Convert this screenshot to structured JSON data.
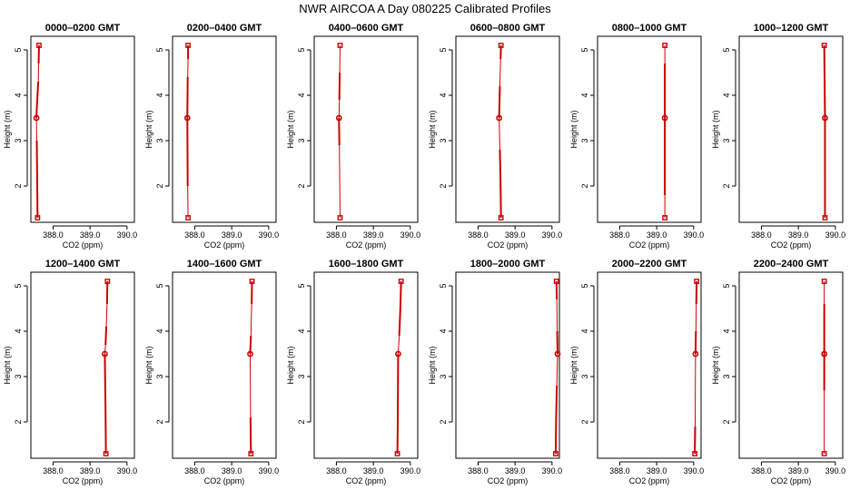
{
  "title": "NWR AIRCOA A  Day 080225  Calibrated Profiles",
  "colors": {
    "profile": "#cc0000",
    "axes": "#000000",
    "background": "#ffffff"
  },
  "chart_data": [
    {
      "type": "line",
      "title": "0000–0200 GMT",
      "xlabel": "CO2 (ppm)",
      "ylabel": "Height (m)",
      "xlim": [
        387.4,
        390.2
      ],
      "ylim": [
        1.2,
        5.3
      ],
      "xticks": [
        388.0,
        389.0,
        390.0
      ],
      "xtick_labels": [
        "388.0",
        "389.0",
        "390.0"
      ],
      "yticks": [
        2,
        3,
        4,
        5
      ],
      "ytick_labels": [
        "2",
        "3",
        "4",
        "5"
      ],
      "grid": false,
      "series": [
        {
          "x": [
            387.62,
            387.55,
            387.58
          ],
          "y": [
            5.1,
            3.5,
            1.3
          ],
          "x_lines": [
            [
              387.62,
              387.61,
              387.6,
              387.58,
              387.56,
              387.55
            ],
            [
              387.55,
              387.56,
              387.57,
              387.58
            ]
          ],
          "y_lines": [
            [
              5.1,
              4.7,
              4.3,
              4.0,
              3.7,
              3.5
            ],
            [
              3.5,
              3.0,
              2.2,
              1.3
            ]
          ],
          "line_width": [
            2,
            1,
            2,
            2
          ]
        }
      ]
    },
    {
      "type": "line",
      "title": "0200–0400 GMT",
      "xlabel": "CO2 (ppm)",
      "ylabel": "Height (m)",
      "xlim": [
        387.4,
        390.2
      ],
      "ylim": [
        1.2,
        5.3
      ],
      "xticks": [
        388.0,
        389.0,
        390.0
      ],
      "xtick_labels": [
        "388.0",
        "389.0",
        "390.0"
      ],
      "yticks": [
        2,
        3,
        4,
        5
      ],
      "ytick_labels": [
        "2",
        "3",
        "4",
        "5"
      ],
      "grid": false,
      "series": [
        {
          "x": [
            387.82,
            387.8,
            387.82
          ],
          "y": [
            5.1,
            3.5,
            1.3
          ],
          "x_lines": [
            [
              387.82,
              387.82,
              387.81,
              387.8
            ],
            [
              387.8,
              387.81,
              387.82
            ]
          ],
          "y_lines": [
            [
              5.1,
              4.8,
              4.4,
              3.5
            ],
            [
              3.5,
              2.0,
              1.3
            ]
          ],
          "line_width": [
            2,
            1,
            2
          ]
        }
      ]
    },
    {
      "type": "line",
      "title": "0400–0600 GMT",
      "xlabel": "CO2 (ppm)",
      "ylabel": "Height (m)",
      "xlim": [
        387.4,
        390.2
      ],
      "ylim": [
        1.2,
        5.3
      ],
      "xticks": [
        388.0,
        389.0,
        390.0
      ],
      "xtick_labels": [
        "388.0",
        "389.0",
        "390.0"
      ],
      "yticks": [
        2,
        3,
        4,
        5
      ],
      "ytick_labels": [
        "2",
        "3",
        "4",
        "5"
      ],
      "grid": false,
      "series": [
        {
          "x": [
            388.1,
            388.07,
            388.1
          ],
          "y": [
            5.1,
            3.5,
            1.3
          ],
          "x_lines": [
            [
              388.1,
              388.09,
              388.08,
              388.07
            ],
            [
              388.07,
              388.08,
              388.09,
              388.1
            ]
          ],
          "y_lines": [
            [
              5.1,
              4.5,
              3.9,
              3.5
            ],
            [
              3.5,
              2.9,
              2.1,
              1.3
            ]
          ],
          "line_width": [
            1,
            2,
            1,
            2,
            1
          ]
        }
      ]
    },
    {
      "type": "line",
      "title": "0600–0800 GMT",
      "xlabel": "CO2 (ppm)",
      "ylabel": "Height (m)",
      "xlim": [
        387.4,
        390.2
      ],
      "ylim": [
        1.2,
        5.3
      ],
      "xticks": [
        388.0,
        389.0,
        390.0
      ],
      "xtick_labels": [
        "388.0",
        "389.0",
        "390.0"
      ],
      "yticks": [
        2,
        3,
        4,
        5
      ],
      "ytick_labels": [
        "2",
        "3",
        "4",
        "5"
      ],
      "grid": false,
      "series": [
        {
          "x": [
            388.62,
            388.57,
            388.62
          ],
          "y": [
            5.1,
            3.5,
            1.3
          ],
          "x_lines": [
            [
              388.62,
              388.61,
              388.59,
              388.57
            ],
            [
              388.57,
              388.59,
              388.61,
              388.62
            ]
          ],
          "y_lines": [
            [
              5.1,
              4.8,
              4.2,
              3.5
            ],
            [
              3.5,
              2.8,
              2.0,
              1.3
            ]
          ],
          "line_width": [
            2,
            1,
            2,
            1,
            2
          ]
        }
      ]
    },
    {
      "type": "line",
      "title": "0800–1000 GMT",
      "xlabel": "CO2 (ppm)",
      "ylabel": "Height (m)",
      "xlim": [
        387.4,
        390.2
      ],
      "ylim": [
        1.2,
        5.3
      ],
      "xticks": [
        388.0,
        389.0,
        390.0
      ],
      "xtick_labels": [
        "388.0",
        "389.0",
        "390.0"
      ],
      "yticks": [
        2,
        3,
        4,
        5
      ],
      "ytick_labels": [
        "2",
        "3",
        "4",
        "5"
      ],
      "grid": false,
      "series": [
        {
          "x": [
            389.22,
            389.22,
            389.22
          ],
          "y": [
            5.1,
            3.5,
            1.3
          ],
          "x_lines": [
            [
              389.22,
              389.22,
              389.22
            ],
            [
              389.22,
              389.22,
              389.22
            ]
          ],
          "y_lines": [
            [
              5.1,
              4.7,
              3.5
            ],
            [
              3.5,
              1.8,
              1.3
            ]
          ],
          "line_width": [
            1,
            2,
            2,
            1
          ]
        }
      ]
    },
    {
      "type": "line",
      "title": "1000–1200 GMT",
      "xlabel": "CO2 (ppm)",
      "ylabel": "Height (m)",
      "xlim": [
        387.4,
        390.2
      ],
      "ylim": [
        1.2,
        5.3
      ],
      "xticks": [
        388.0,
        389.0,
        390.0
      ],
      "xtick_labels": [
        "388.0",
        "389.0",
        "390.0"
      ],
      "yticks": [
        2,
        3,
        4,
        5
      ],
      "ytick_labels": [
        "2",
        "3",
        "4",
        "5"
      ],
      "grid": false,
      "series": [
        {
          "x": [
            389.7,
            389.72,
            389.72
          ],
          "y": [
            5.1,
            3.5,
            1.3
          ],
          "x_lines": [
            [
              389.7,
              389.71,
              389.72
            ],
            [
              389.72,
              389.72,
              389.72
            ]
          ],
          "y_lines": [
            [
              5.1,
              4.3,
              3.5
            ],
            [
              3.5,
              2.2,
              1.3
            ]
          ],
          "line_width": [
            2,
            2,
            2,
            2
          ]
        }
      ]
    },
    {
      "type": "line",
      "title": "1200–1400 GMT",
      "xlabel": "CO2 (ppm)",
      "ylabel": "Height (m)",
      "xlim": [
        387.4,
        390.2
      ],
      "ylim": [
        1.2,
        5.3
      ],
      "xticks": [
        388.0,
        389.0,
        390.0
      ],
      "xtick_labels": [
        "388.0",
        "389.0",
        "390.0"
      ],
      "yticks": [
        2,
        3,
        4,
        5
      ],
      "ytick_labels": [
        "2",
        "3",
        "4",
        "5"
      ],
      "grid": false,
      "series": [
        {
          "x": [
            389.47,
            389.4,
            389.43
          ],
          "y": [
            5.1,
            3.5,
            1.3
          ],
          "x_lines": [
            [
              389.47,
              389.46,
              389.44,
              389.42,
              389.4
            ],
            [
              389.4,
              389.42,
              389.43
            ]
          ],
          "y_lines": [
            [
              5.1,
              4.6,
              4.1,
              3.7,
              3.5
            ],
            [
              3.5,
              2.2,
              1.3
            ]
          ],
          "line_width": [
            2,
            1,
            2,
            1,
            2
          ]
        }
      ]
    },
    {
      "type": "line",
      "title": "1400–1600 GMT",
      "xlabel": "CO2 (ppm)",
      "ylabel": "Height (m)",
      "xlim": [
        387.4,
        390.2
      ],
      "ylim": [
        1.2,
        5.3
      ],
      "xticks": [
        388.0,
        389.0,
        390.0
      ],
      "xtick_labels": [
        "388.0",
        "389.0",
        "390.0"
      ],
      "yticks": [
        2,
        3,
        4,
        5
      ],
      "ytick_labels": [
        "2",
        "3",
        "4",
        "5"
      ],
      "grid": false,
      "series": [
        {
          "x": [
            389.55,
            389.5,
            389.52
          ],
          "y": [
            5.1,
            3.5,
            1.3
          ],
          "x_lines": [
            [
              389.55,
              389.54,
              389.52,
              389.5
            ],
            [
              389.5,
              389.51,
              389.52
            ]
          ],
          "y_lines": [
            [
              5.1,
              4.6,
              3.9,
              3.5
            ],
            [
              3.5,
              2.1,
              1.3
            ]
          ],
          "line_width": [
            2,
            1,
            2,
            1,
            2
          ]
        }
      ]
    },
    {
      "type": "line",
      "title": "1600–1800 GMT",
      "xlabel": "CO2 (ppm)",
      "ylabel": "Height (m)",
      "xlim": [
        387.4,
        390.2
      ],
      "ylim": [
        1.2,
        5.3
      ],
      "xticks": [
        388.0,
        389.0,
        390.0
      ],
      "xtick_labels": [
        "388.0",
        "389.0",
        "390.0"
      ],
      "yticks": [
        2,
        3,
        4,
        5
      ],
      "ytick_labels": [
        "2",
        "3",
        "4",
        "5"
      ],
      "grid": false,
      "series": [
        {
          "x": [
            389.75,
            389.67,
            389.65
          ],
          "y": [
            5.1,
            3.5,
            1.3
          ],
          "x_lines": [
            [
              389.75,
              389.73,
              389.7,
              389.67
            ],
            [
              389.67,
              389.66,
              389.65
            ]
          ],
          "y_lines": [
            [
              5.1,
              4.5,
              3.9,
              3.5
            ],
            [
              3.5,
              2.0,
              1.3
            ]
          ],
          "line_width": [
            2,
            2,
            1,
            2
          ]
        }
      ]
    },
    {
      "type": "line",
      "title": "1800–2000 GMT",
      "xlabel": "CO2 (ppm)",
      "ylabel": "Height (m)",
      "xlim": [
        387.4,
        390.2
      ],
      "ylim": [
        1.2,
        5.3
      ],
      "xticks": [
        388.0,
        389.0,
        390.0
      ],
      "xtick_labels": [
        "388.0",
        "389.0",
        "390.0"
      ],
      "yticks": [
        2,
        3,
        4,
        5
      ],
      "ytick_labels": [
        "2",
        "3",
        "4",
        "5"
      ],
      "grid": false,
      "series": [
        {
          "x": [
            390.12,
            390.15,
            390.1
          ],
          "y": [
            5.1,
            3.5,
            1.3
          ],
          "x_lines": [
            [
              390.12,
              390.13,
              390.14,
              390.15
            ],
            [
              390.15,
              390.13,
              390.11,
              390.1
            ]
          ],
          "y_lines": [
            [
              5.1,
              4.7,
              4.0,
              3.5
            ],
            [
              3.5,
              2.8,
              2.0,
              1.3
            ]
          ],
          "line_width": [
            2,
            1,
            2,
            1,
            2
          ]
        }
      ]
    },
    {
      "type": "line",
      "title": "2000–2200 GMT",
      "xlabel": "CO2 (ppm)",
      "ylabel": "Height (m)",
      "xlim": [
        387.4,
        390.2
      ],
      "ylim": [
        1.2,
        5.3
      ],
      "xticks": [
        388.0,
        389.0,
        390.0
      ],
      "xtick_labels": [
        "388.0",
        "389.0",
        "390.0"
      ],
      "yticks": [
        2,
        3,
        4,
        5
      ],
      "ytick_labels": [
        "2",
        "3",
        "4",
        "5"
      ],
      "grid": false,
      "series": [
        {
          "x": [
            390.08,
            390.05,
            390.03
          ],
          "y": [
            5.1,
            3.5,
            1.3
          ],
          "x_lines": [
            [
              390.08,
              390.07,
              390.06,
              390.05
            ],
            [
              390.05,
              390.04,
              390.03
            ]
          ],
          "y_lines": [
            [
              5.1,
              4.6,
              4.0,
              3.5
            ],
            [
              3.5,
              1.9,
              1.3
            ]
          ],
          "line_width": [
            2,
            1,
            2,
            1
          ]
        }
      ]
    },
    {
      "type": "line",
      "title": "2200–2400 GMT",
      "xlabel": "CO2 (ppm)",
      "ylabel": "Height (m)",
      "xlim": [
        387.4,
        390.2
      ],
      "ylim": [
        1.2,
        5.3
      ],
      "xticks": [
        388.0,
        389.0,
        390.0
      ],
      "xtick_labels": [
        "388.0",
        "389.0",
        "390.0"
      ],
      "yticks": [
        2,
        3,
        4,
        5
      ],
      "ytick_labels": [
        "2",
        "3",
        "4",
        "5"
      ],
      "grid": false,
      "series": [
        {
          "x": [
            389.7,
            389.7,
            389.7
          ],
          "y": [
            5.1,
            3.5,
            1.3
          ],
          "x_lines": [
            [
              389.7,
              389.7,
              389.7
            ],
            [
              389.7,
              389.7,
              389.7
            ]
          ],
          "y_lines": [
            [
              5.1,
              4.6,
              3.5
            ],
            [
              3.5,
              2.7,
              1.3
            ]
          ],
          "line_width": [
            1,
            2,
            2,
            1
          ]
        }
      ]
    }
  ]
}
